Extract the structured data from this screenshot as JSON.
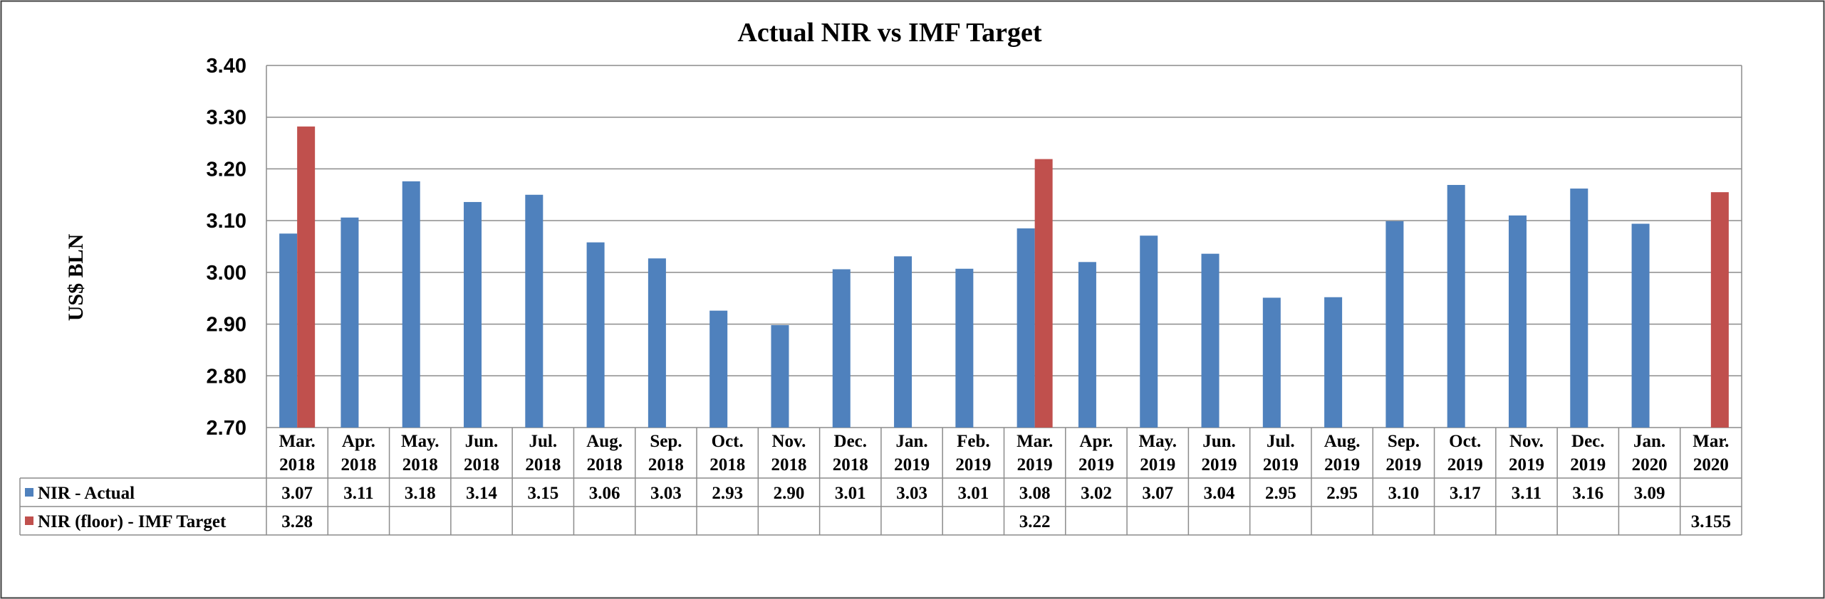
{
  "chart_data": {
    "type": "bar",
    "title": "Actual NIR vs IMF Target",
    "ylabel": "US$ BLN",
    "ylim": [
      2.7,
      3.4
    ],
    "yticks": [
      "3.40",
      "3.30",
      "3.20",
      "3.10",
      "3.00",
      "2.90",
      "2.80",
      "2.70"
    ],
    "ytick_values": [
      3.4,
      3.3,
      3.2,
      3.1,
      3.0,
      2.9,
      2.8,
      2.7
    ],
    "grid": true,
    "legend": "data-table",
    "categories": [
      [
        "Mar.",
        "2018"
      ],
      [
        "Apr.",
        "2018"
      ],
      [
        "May.",
        "2018"
      ],
      [
        "Jun.",
        "2018"
      ],
      [
        "Jul.",
        "2018"
      ],
      [
        "Aug.",
        "2018"
      ],
      [
        "Sep.",
        "2018"
      ],
      [
        "Oct.",
        "2018"
      ],
      [
        "Nov.",
        "2018"
      ],
      [
        "Dec.",
        "2018"
      ],
      [
        "Jan.",
        "2019"
      ],
      [
        "Feb.",
        "2019"
      ],
      [
        "Mar.",
        "2019"
      ],
      [
        "Apr.",
        "2019"
      ],
      [
        "May.",
        "2019"
      ],
      [
        "Jun.",
        "2019"
      ],
      [
        "Jul.",
        "2019"
      ],
      [
        "Aug.",
        "2019"
      ],
      [
        "Sep.",
        "2019"
      ],
      [
        "Oct.",
        "2019"
      ],
      [
        "Nov.",
        "2019"
      ],
      [
        "Dec.",
        "2019"
      ],
      [
        "Jan.",
        "2020"
      ],
      [
        "Mar.",
        "2020"
      ]
    ],
    "series": [
      {
        "name": "NIR - Actual",
        "color": "#4F81BD",
        "values": [
          3.075,
          3.106,
          3.176,
          3.136,
          3.15,
          3.058,
          3.027,
          2.926,
          2.898,
          3.006,
          3.031,
          3.007,
          3.085,
          3.02,
          3.071,
          3.036,
          2.951,
          2.952,
          3.099,
          3.169,
          3.11,
          3.162,
          3.094,
          null
        ],
        "labels": [
          "3.07",
          "3.11",
          "3.18",
          "3.14",
          "3.15",
          "3.06",
          "3.03",
          "2.93",
          "2.90",
          "3.01",
          "3.03",
          "3.01",
          "3.08",
          "3.02",
          "3.07",
          "3.04",
          "2.95",
          "2.95",
          "3.10",
          "3.17",
          "3.11",
          "3.16",
          "3.09",
          ""
        ]
      },
      {
        "name": "NIR (floor) - IMF Target",
        "color": "#C0504D",
        "values": [
          3.282,
          null,
          null,
          null,
          null,
          null,
          null,
          null,
          null,
          null,
          null,
          null,
          3.219,
          null,
          null,
          null,
          null,
          null,
          null,
          null,
          null,
          null,
          null,
          3.155
        ],
        "labels": [
          "3.28",
          "",
          "",
          "",
          "",
          "",
          "",
          "",
          "",
          "",
          "",
          "",
          "3.22",
          "",
          "",
          "",
          "",
          "",
          "",
          "",
          "",
          "",
          "",
          "3.155"
        ]
      }
    ]
  }
}
